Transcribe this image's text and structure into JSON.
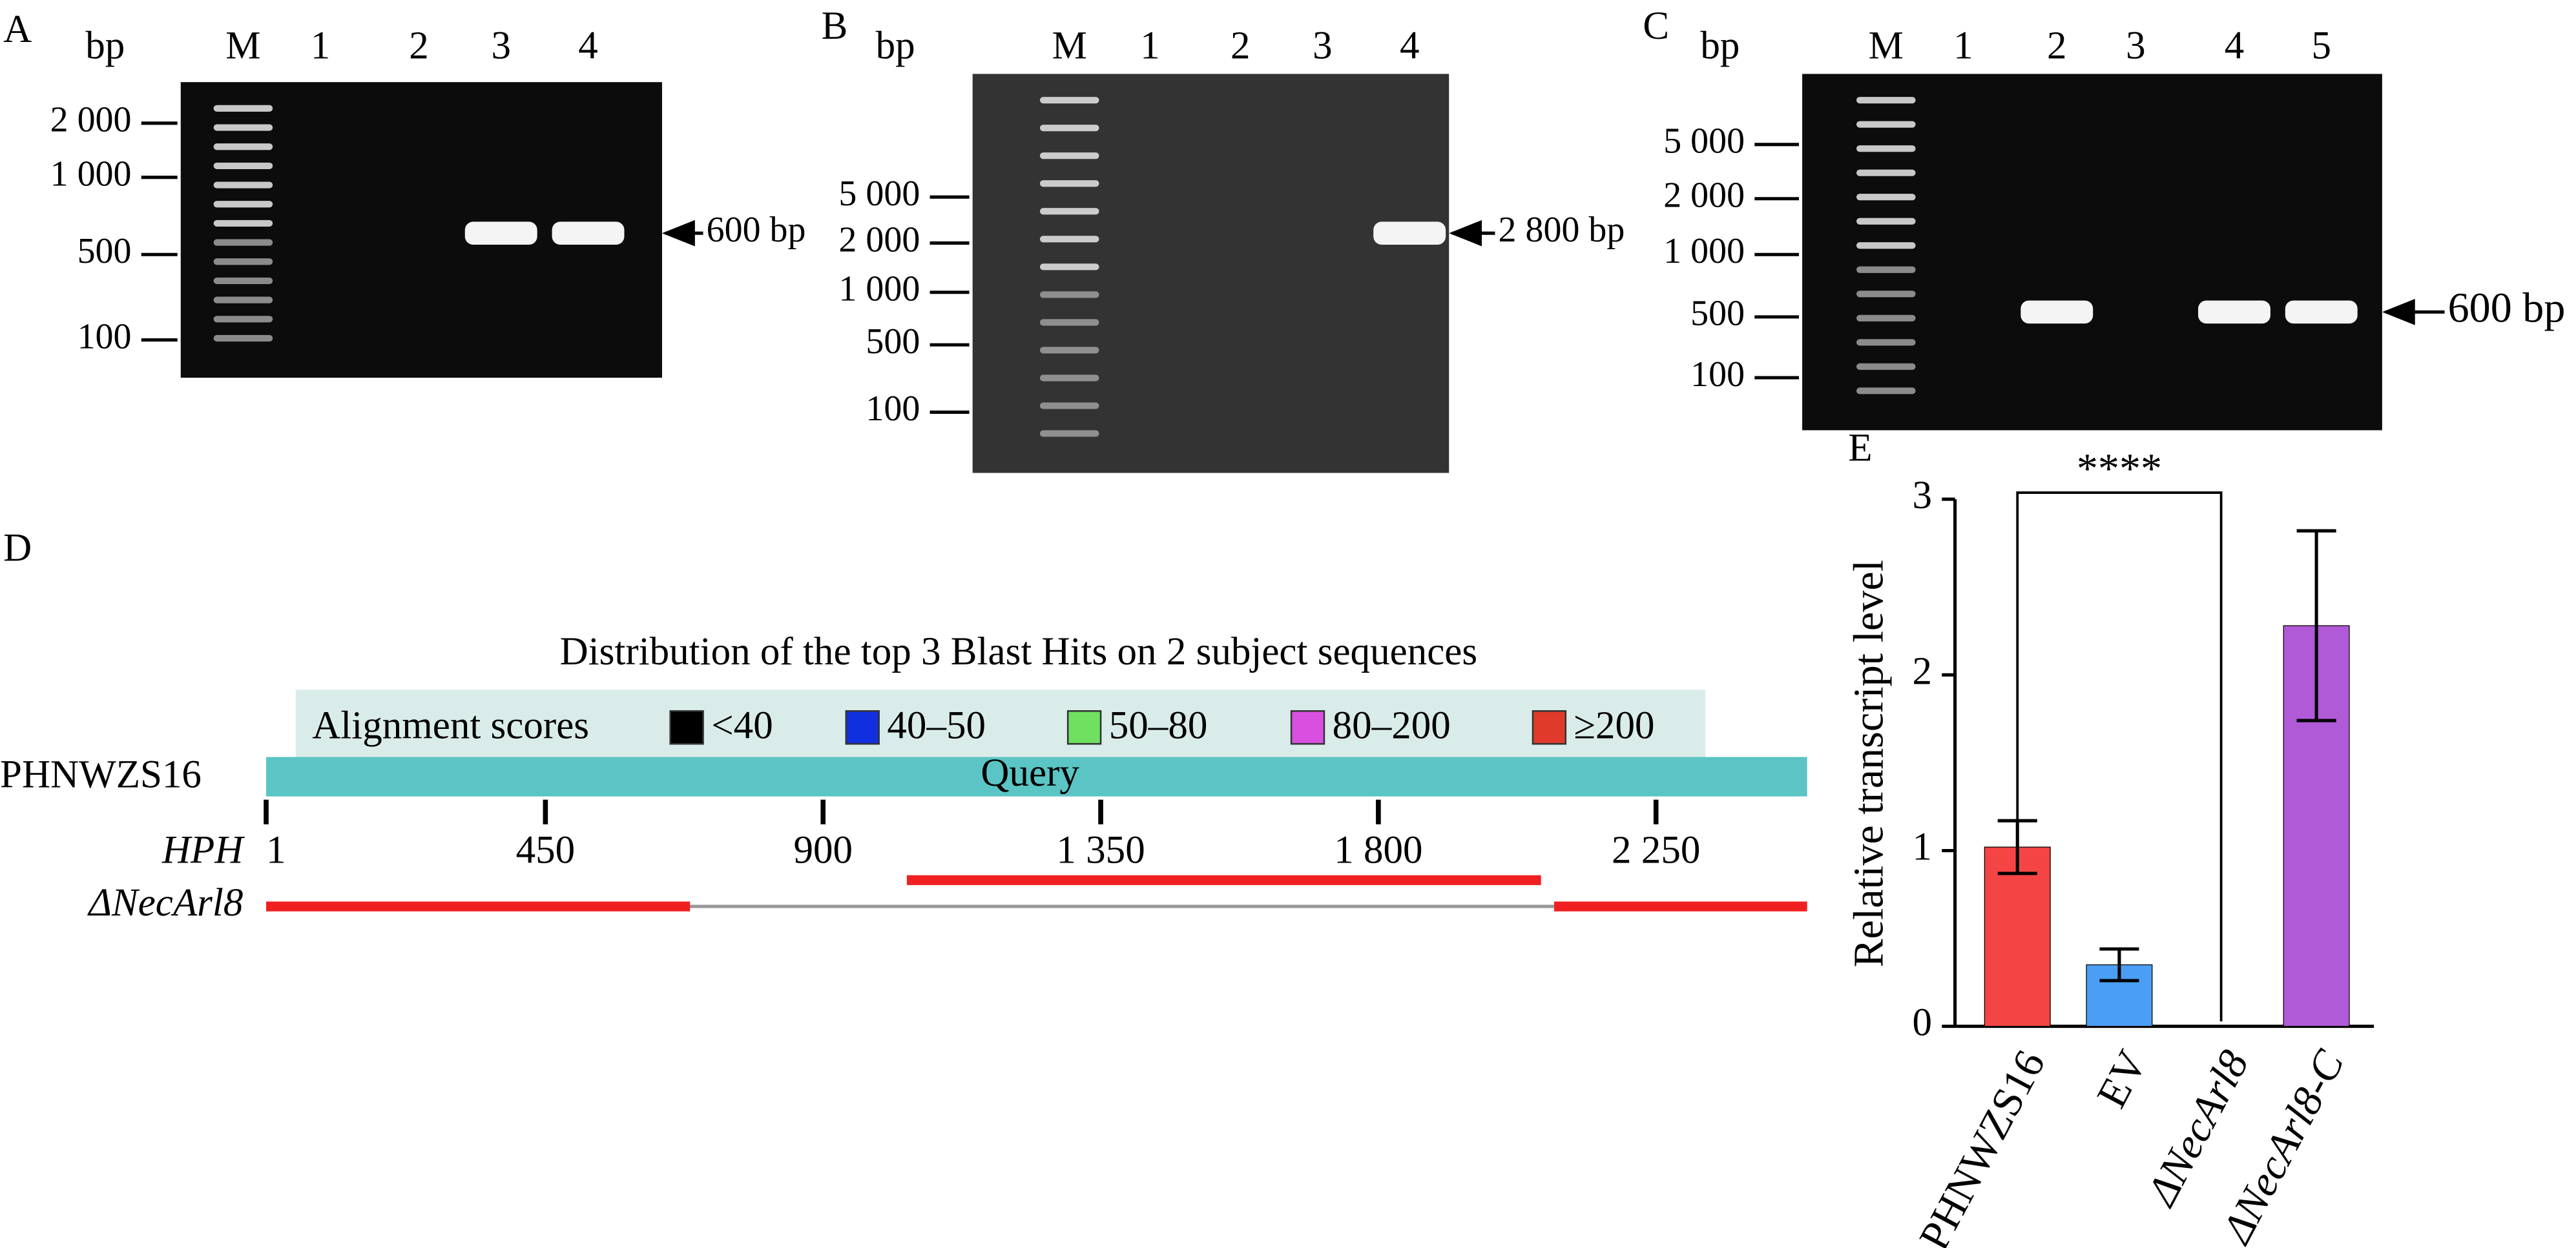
{
  "panel_a": {
    "label": "A",
    "unit": "bp",
    "lanes": [
      "M",
      "1",
      "2",
      "3",
      "4"
    ],
    "markers": [
      "2 000",
      "1 000",
      "500",
      "100"
    ],
    "band_label": "600 bp"
  },
  "panel_b": {
    "label": "B",
    "unit": "bp",
    "lanes": [
      "M",
      "1",
      "2",
      "3",
      "4"
    ],
    "markers": [
      "5 000",
      "2 000",
      "1 000",
      "500",
      "100"
    ],
    "band_label": "2 800 bp"
  },
  "panel_c": {
    "label": "C",
    "unit": "bp",
    "lanes": [
      "M",
      "1",
      "2",
      "3",
      "4",
      "5"
    ],
    "markers": [
      "5 000",
      "2 000",
      "1 000",
      "500",
      "100"
    ],
    "band_label": "600 bp"
  },
  "panel_d": {
    "label": "D",
    "title": "Distribution of the top 3 Blast Hits on 2 subject sequences",
    "legend_title": "Alignment scores",
    "legend": [
      {
        "label": "<40",
        "color": "#000000"
      },
      {
        "label": "40–50",
        "color": "#1030e0"
      },
      {
        "label": "50–80",
        "color": "#6fe060"
      },
      {
        "label": "80–200",
        "color": "#d94fe0"
      },
      {
        "label": "≥200",
        "color": "#e03a2a"
      }
    ],
    "query_name": "PHNWZS16",
    "query_label": "Query",
    "ticks": [
      "1",
      "450",
      "900",
      "1 350",
      "1 800",
      "2 250"
    ],
    "rows": [
      "HPH",
      "ΔNecArl8"
    ]
  },
  "chart_data": {
    "type": "bar",
    "label": "E",
    "y_label": "Relative transcript level",
    "annotation": "****",
    "categories": [
      "PHNWZS16",
      "EV",
      "ΔNecArl8",
      "ΔNecArl8-C"
    ],
    "values": [
      1.02,
      0.35,
      0,
      2.28
    ],
    "errors": [
      0.15,
      0.09,
      0,
      0.54
    ],
    "colors": [
      "#f44444",
      "#4a9ff5",
      "#888888",
      "#b05ad8"
    ],
    "ylim": [
      0,
      3
    ],
    "yticks": [
      0,
      1,
      2,
      3
    ],
    "grid": false
  }
}
